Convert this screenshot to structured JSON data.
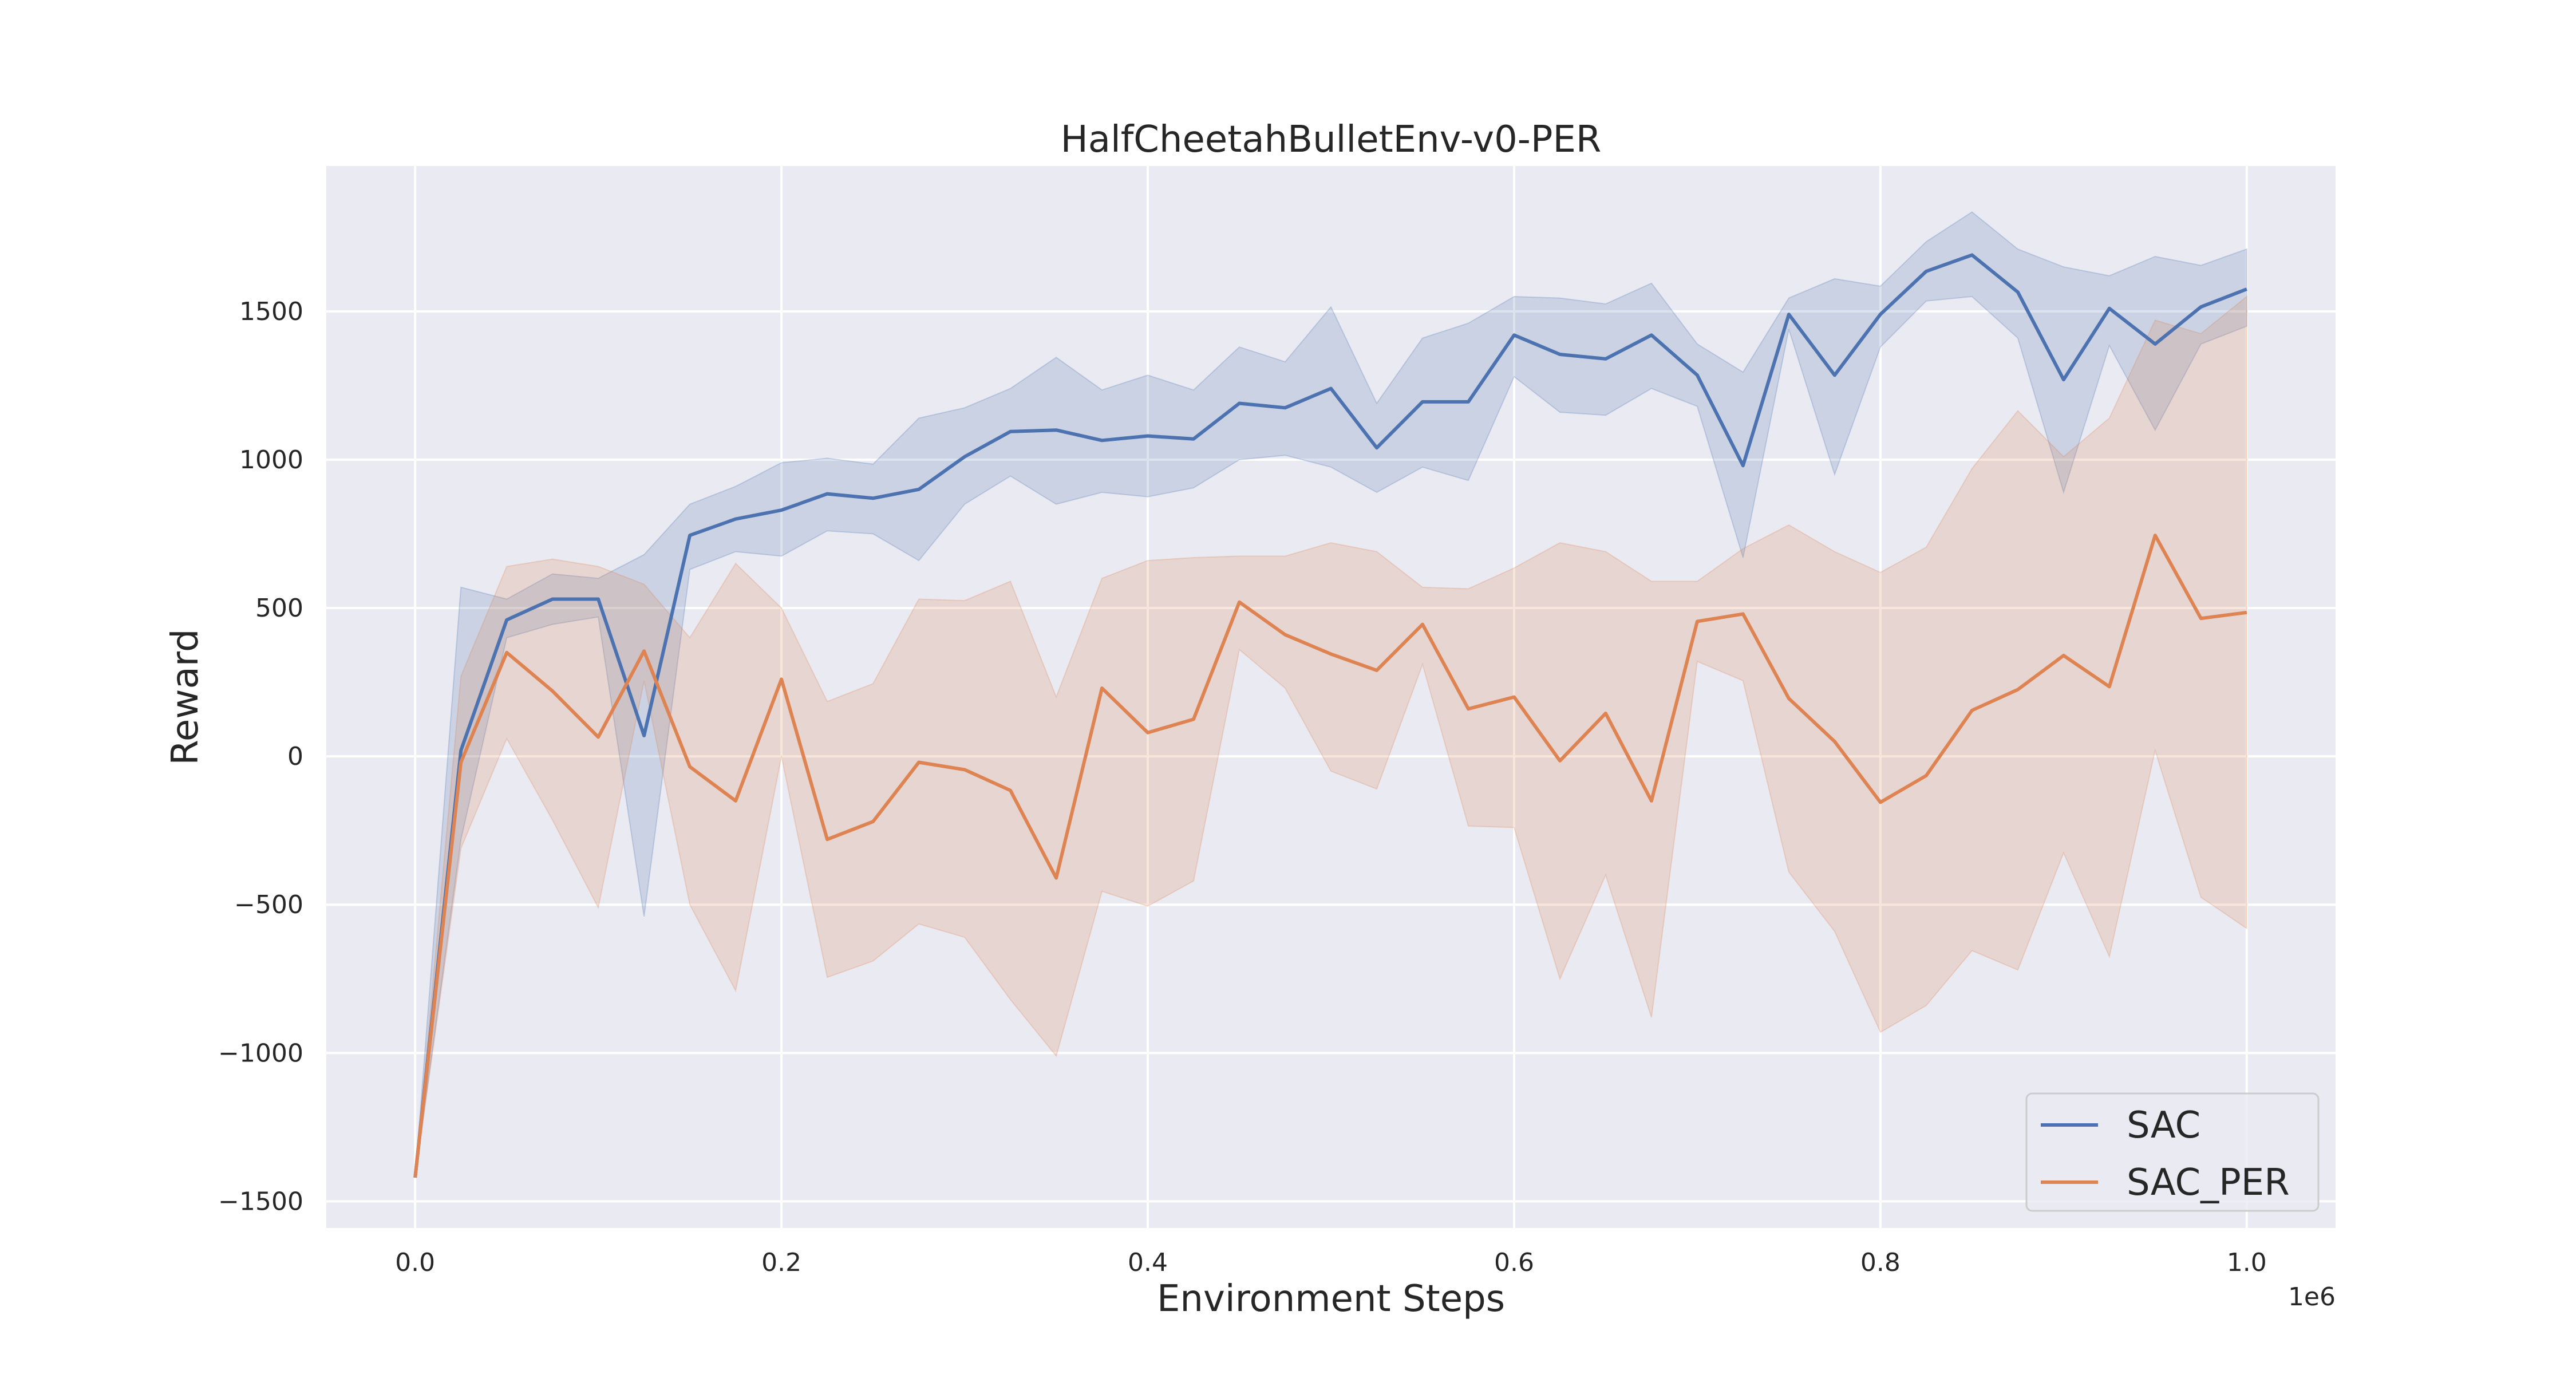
{
  "chart_data": {
    "type": "line",
    "title": "HalfCheetahBulletEnv-v0-PER",
    "xlabel": "Environment Steps",
    "ylabel": "Reward",
    "x_offset_text": "1e6",
    "xlim": [
      -0.0485,
      1.0485
    ],
    "ylim": [
      -1590,
      1990
    ],
    "x_ticks": [
      0.0,
      0.2,
      0.4,
      0.6,
      0.8,
      1.0
    ],
    "x_tick_labels": [
      "0.0",
      "0.2",
      "0.4",
      "0.6",
      "0.8",
      "1.0"
    ],
    "y_ticks": [
      -1500,
      -1000,
      -500,
      0,
      500,
      1000,
      1500
    ],
    "y_tick_labels": [
      "−1500",
      "−1000",
      "−500",
      "0",
      "500",
      "1000",
      "1500"
    ],
    "grid": true,
    "legend_position": "lower-right",
    "x": [
      0.0,
      0.025,
      0.05,
      0.075,
      0.1,
      0.125,
      0.15,
      0.175,
      0.2,
      0.225,
      0.25,
      0.275,
      0.3,
      0.325,
      0.35,
      0.375,
      0.4,
      0.425,
      0.45,
      0.475,
      0.5,
      0.525,
      0.55,
      0.575,
      0.6,
      0.625,
      0.65,
      0.675,
      0.7,
      0.725,
      0.75,
      0.775,
      0.8,
      0.825,
      0.85,
      0.875,
      0.9,
      0.925,
      0.95,
      0.975,
      1.0
    ],
    "series": [
      {
        "name": "SAC",
        "color": "#4c72b0",
        "values": [
          -1420,
          20,
          460,
          530,
          530,
          70,
          745,
          800,
          830,
          885,
          870,
          900,
          1010,
          1095,
          1100,
          1065,
          1080,
          1070,
          1190,
          1175,
          1240,
          1040,
          1195,
          1195,
          1420,
          1355,
          1340,
          1420,
          1285,
          980,
          1490,
          1285,
          1490,
          1635,
          1690,
          1565,
          1270,
          1510,
          1390,
          1515,
          1575
        ],
        "lower": [
          -1420,
          -280,
          400,
          445,
          470,
          -540,
          630,
          690,
          675,
          760,
          750,
          660,
          850,
          945,
          850,
          890,
          875,
          905,
          1000,
          1015,
          975,
          890,
          975,
          930,
          1280,
          1160,
          1150,
          1240,
          1180,
          670,
          1440,
          950,
          1380,
          1535,
          1550,
          1410,
          890,
          1385,
          1100,
          1390,
          1450
        ],
        "upper": [
          -1420,
          570,
          530,
          615,
          600,
          680,
          850,
          910,
          990,
          1005,
          985,
          1140,
          1175,
          1240,
          1345,
          1235,
          1285,
          1235,
          1380,
          1330,
          1515,
          1190,
          1410,
          1460,
          1550,
          1545,
          1525,
          1595,
          1390,
          1295,
          1545,
          1610,
          1585,
          1735,
          1835,
          1710,
          1650,
          1620,
          1685,
          1655,
          1710
        ]
      },
      {
        "name": "SAC_PER",
        "color": "#dd8452",
        "values": [
          -1420,
          -20,
          350,
          220,
          65,
          355,
          -35,
          -150,
          260,
          -280,
          -220,
          -20,
          -45,
          -115,
          -410,
          230,
          80,
          125,
          520,
          410,
          345,
          290,
          445,
          160,
          200,
          -15,
          145,
          -150,
          455,
          480,
          195,
          50,
          -155,
          -65,
          155,
          225,
          340,
          235,
          745,
          465,
          485
        ],
        "lower": [
          -1420,
          -310,
          60,
          -215,
          -510,
          255,
          -500,
          -790,
          0,
          -745,
          -690,
          -565,
          -610,
          -820,
          -1010,
          -455,
          -505,
          -420,
          360,
          230,
          -50,
          -110,
          310,
          -235,
          -240,
          -750,
          -400,
          -880,
          320,
          255,
          -390,
          -590,
          -930,
          -840,
          -655,
          -720,
          -325,
          -675,
          20,
          -475,
          -580
        ],
        "upper": [
          -1420,
          270,
          640,
          665,
          640,
          580,
          400,
          650,
          500,
          185,
          245,
          530,
          525,
          590,
          200,
          600,
          660,
          670,
          675,
          675,
          720,
          690,
          570,
          565,
          635,
          720,
          690,
          590,
          590,
          700,
          780,
          690,
          620,
          705,
          970,
          1165,
          1010,
          1140,
          1470,
          1425,
          1550
        ]
      }
    ]
  }
}
